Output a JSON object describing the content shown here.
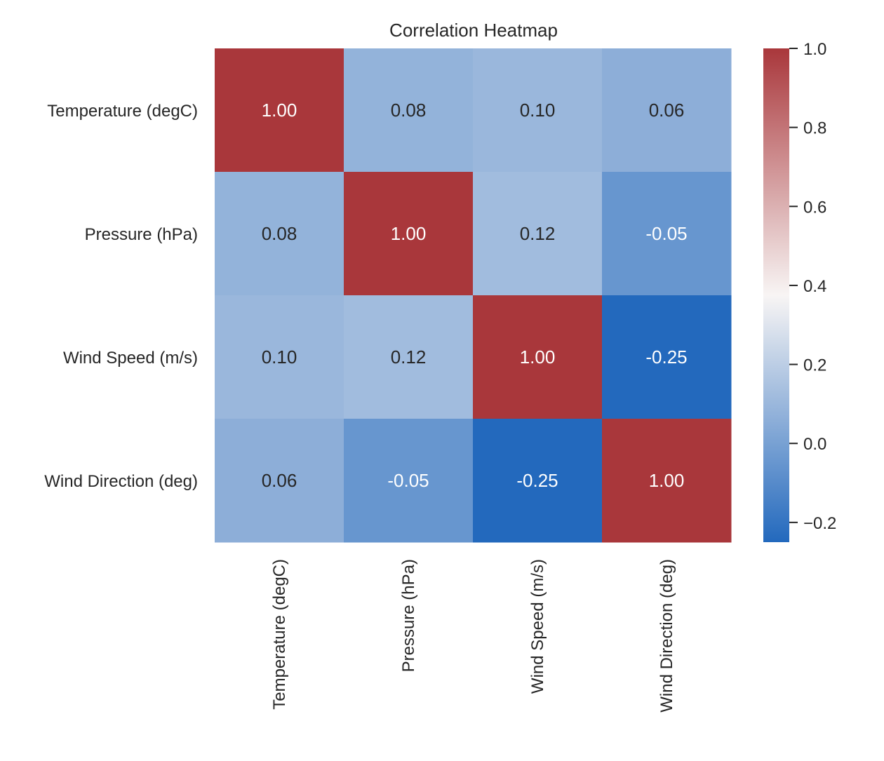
{
  "chart_data": {
    "type": "heatmap",
    "title": "Correlation Heatmap",
    "xlabel": "",
    "ylabel": "",
    "rows": [
      "Temperature (degC)",
      "Pressure (hPa)",
      "Wind Speed (m/s)",
      "Wind Direction (deg)"
    ],
    "columns": [
      "Temperature (degC)",
      "Pressure (hPa)",
      "Wind Speed (m/s)",
      "Wind Direction (deg)"
    ],
    "values": [
      [
        1.0,
        0.08,
        0.1,
        0.06
      ],
      [
        0.08,
        1.0,
        0.12,
        -0.05
      ],
      [
        0.1,
        0.12,
        1.0,
        -0.25
      ],
      [
        0.06,
        -0.05,
        -0.25,
        1.0
      ]
    ],
    "value_format": "2f",
    "colorbar": {
      "range": [
        -0.25,
        1.0
      ],
      "ticks": [
        -0.2,
        0.0,
        0.2,
        0.4,
        0.6,
        0.8,
        1.0
      ],
      "tick_labels": [
        "−0.2",
        "0.0",
        "0.2",
        "0.4",
        "0.6",
        "0.8",
        "1.0"
      ]
    },
    "colormap": {
      "low": "#2369bd",
      "mid": "#f8f5f4",
      "high": "#a9373b"
    },
    "text_colors": {
      "dark": "#262626",
      "light": "#ffffff"
    },
    "grid": false
  }
}
